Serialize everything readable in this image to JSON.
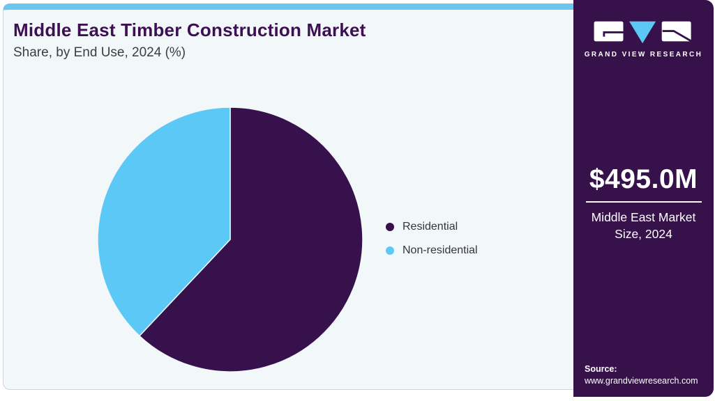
{
  "header": {
    "title": "Middle East Timber Construction Market",
    "subtitle": "Share, by End Use, 2024 (%)"
  },
  "chart_data": {
    "type": "pie",
    "title": "Middle East Timber Construction Market Share, by End Use, 2024 (%)",
    "categories": [
      "Residential",
      "Non-residential"
    ],
    "values": [
      62,
      38
    ],
    "colors": [
      "#36114C",
      "#5BC8F5"
    ],
    "start_angle_deg": 0,
    "direction": "clockwise",
    "legend_position": "right",
    "data_labels_shown": false
  },
  "legend": {
    "items": [
      {
        "label": "Residential",
        "color": "#36114C"
      },
      {
        "label": "Non-residential",
        "color": "#5BC8F5"
      }
    ]
  },
  "sidebar": {
    "logo_text": "GRAND VIEW RESEARCH",
    "market_size_value": "$495.0M",
    "market_size_label": "Middle East Market Size, 2024",
    "source_label": "Source:",
    "source_url": "www.grandviewresearch.com"
  },
  "colors": {
    "accent_strip": "#6AC5EF",
    "card_background": "#F2F7FA",
    "sidebar_background": "#36114A",
    "title_text": "#3D1053",
    "logo_triangle": "#5BC8F5"
  }
}
